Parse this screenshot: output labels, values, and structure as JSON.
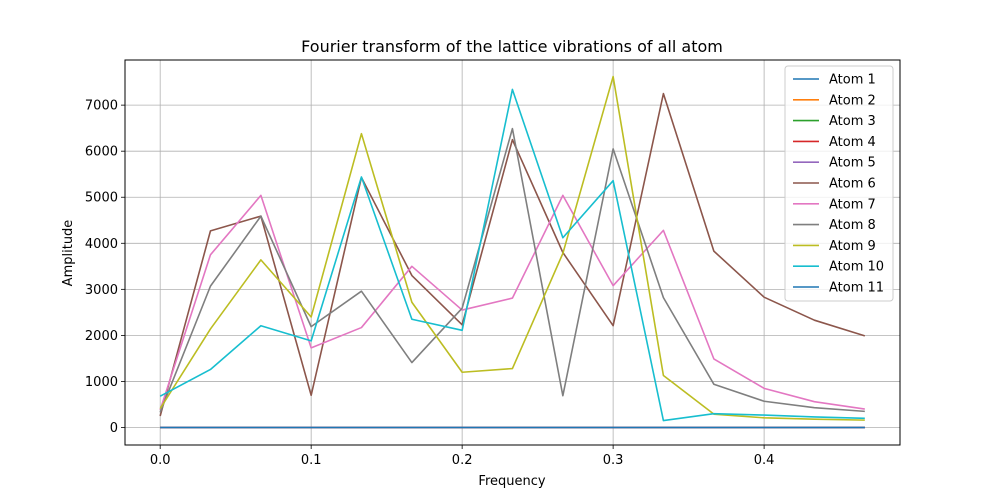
{
  "chart_data": {
    "type": "line",
    "title": "Fourier transform of the lattice vibrations of all atom",
    "xlabel": "Frequency",
    "ylabel": "Amplitude",
    "xlim": [
      -0.0233,
      0.49
    ],
    "ylim": [
      -380,
      7980
    ],
    "xticks": [
      0.0,
      0.1,
      0.2,
      0.3,
      0.4
    ],
    "xtick_labels": [
      "0.0",
      "0.1",
      "0.2",
      "0.3",
      "0.4"
    ],
    "yticks": [
      0,
      1000,
      2000,
      3000,
      4000,
      5000,
      6000,
      7000
    ],
    "ytick_labels": [
      "0",
      "1000",
      "2000",
      "3000",
      "4000",
      "5000",
      "6000",
      "7000"
    ],
    "grid": true,
    "legend_position": "top-right",
    "x": [
      0.0,
      0.0333,
      0.0667,
      0.1,
      0.1333,
      0.1667,
      0.2,
      0.2333,
      0.2667,
      0.3,
      0.3333,
      0.3667,
      0.4,
      0.4333,
      0.4667
    ],
    "series": [
      {
        "name": "Atom 1",
        "color": "#1f77b4",
        "values": [
          0,
          0,
          0,
          0,
          0,
          0,
          0,
          0,
          0,
          0,
          0,
          0,
          0,
          0,
          0
        ]
      },
      {
        "name": "Atom 2",
        "color": "#ff7f0e",
        "values": [
          0,
          0,
          0,
          0,
          0,
          0,
          0,
          0,
          0,
          0,
          0,
          0,
          0,
          0,
          0
        ]
      },
      {
        "name": "Atom 3",
        "color": "#2ca02c",
        "values": [
          0,
          0,
          0,
          0,
          0,
          0,
          0,
          0,
          0,
          0,
          0,
          0,
          0,
          0,
          0
        ]
      },
      {
        "name": "Atom 4",
        "color": "#d62728",
        "values": [
          0,
          0,
          0,
          0,
          0,
          0,
          0,
          0,
          0,
          0,
          0,
          0,
          0,
          0,
          0
        ]
      },
      {
        "name": "Atom 5",
        "color": "#9467bd",
        "values": [
          0,
          0,
          0,
          0,
          0,
          0,
          0,
          0,
          0,
          0,
          0,
          0,
          0,
          0,
          0
        ]
      },
      {
        "name": "Atom 6",
        "color": "#8c564b",
        "values": [
          250,
          4270,
          4590,
          700,
          5430,
          3300,
          2230,
          6250,
          3800,
          2210,
          7250,
          3830,
          2830,
          2330,
          1990
        ]
      },
      {
        "name": "Atom 7",
        "color": "#e377c2",
        "values": [
          380,
          3750,
          5040,
          1730,
          2170,
          3500,
          2550,
          2810,
          5040,
          3080,
          4280,
          1490,
          850,
          560,
          400
        ]
      },
      {
        "name": "Atom 8",
        "color": "#7f7f7f",
        "values": [
          330,
          3070,
          4590,
          2190,
          2960,
          1410,
          2590,
          6490,
          690,
          6050,
          2820,
          940,
          570,
          430,
          350
        ]
      },
      {
        "name": "Atom 9",
        "color": "#bcbd22",
        "values": [
          410,
          2140,
          3640,
          2400,
          6380,
          2720,
          1200,
          1280,
          3780,
          7620,
          1130,
          290,
          210,
          180,
          160
        ]
      },
      {
        "name": "Atom 10",
        "color": "#17becf",
        "values": [
          680,
          1260,
          2210,
          1880,
          5440,
          2350,
          2110,
          7340,
          4120,
          5360,
          150,
          300,
          270,
          230,
          200
        ]
      },
      {
        "name": "Atom 11",
        "color": "#1f77b4",
        "values": [
          0,
          0,
          0,
          0,
          0,
          0,
          0,
          0,
          0,
          0,
          0,
          0,
          0,
          0,
          0
        ]
      }
    ]
  }
}
